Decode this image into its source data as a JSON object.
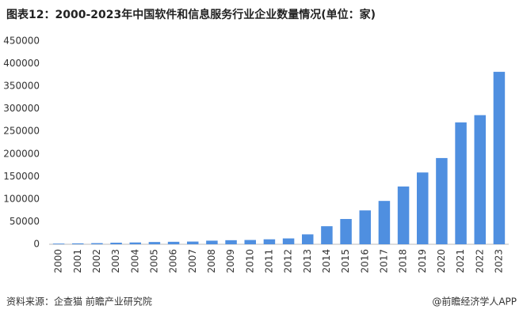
{
  "chart_data": {
    "type": "bar",
    "title": "图表12：2000-2023年中国软件和信息服务行业企业数量情况(单位：家)",
    "source": "资料来源：企查猫 前瞻产业研究院",
    "credit": "@前瞻经济学人APP",
    "categories": [
      "2000",
      "2001",
      "2002",
      "2003",
      "2004",
      "2005",
      "2006",
      "2007",
      "2008",
      "2009",
      "2010",
      "2011",
      "2012",
      "2013",
      "2014",
      "2015",
      "2016",
      "2017",
      "2018",
      "2019",
      "2020",
      "2021",
      "2022",
      "2023"
    ],
    "values": [
      1500,
      2000,
      2500,
      3500,
      4000,
      5000,
      5500,
      6000,
      8000,
      9000,
      9500,
      11000,
      13000,
      22000,
      40000,
      56000,
      75000,
      96000,
      128000,
      159000,
      191000,
      270000,
      286000,
      382000
    ],
    "color": "#4f8fe0",
    "ylim": [
      0,
      450000
    ],
    "yticks": [
      0,
      50000,
      100000,
      150000,
      200000,
      250000,
      300000,
      350000,
      400000,
      450000
    ],
    "grid": false
  }
}
